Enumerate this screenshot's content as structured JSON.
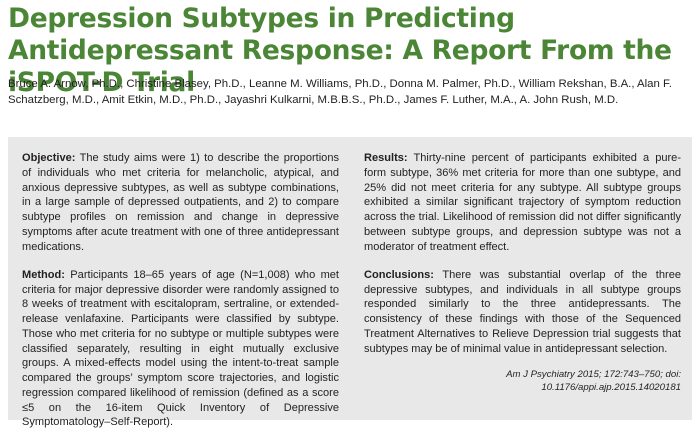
{
  "title": "Depression Subtypes in Predicting Antidepressant Response: A Report From the iSPOT-D Trial",
  "authors": "Bruce A. Arnow, Ph.D., Christine Blasey, Ph.D., Leanne M. Williams, Ph.D., Donna M. Palmer, Ph.D., William Rekshan, B.A., Alan F. Schatzberg, M.D., Amit Etkin, M.D., Ph.D., Jayashri Kulkarni, M.B.B.S., Ph.D., James F. Luther, M.A., A. John Rush, M.D.",
  "colors": {
    "title": "#4b8636",
    "abstract_bg": "#e7e8e7",
    "text": "#231f20"
  },
  "abstract": {
    "objective_label": "Objective:",
    "objective_text": " The study aims were 1) to describe the proportions of individuals who met criteria for melancholic, atypical, and anxious depressive subtypes, as well as subtype combinations, in a large sample of depressed outpatients, and 2) to compare subtype profiles on remission and change in depressive symptoms after acute treatment with one of three antidepressant medications.",
    "method_label": "Method:",
    "method_text": " Participants 18–65 years of age (N=1,008) who met criteria for major depressive disorder were randomly assigned to 8 weeks of treatment with escitalopram, sertraline, or extended-release venlafaxine. Participants were classified by subtype. Those who met criteria for no subtype or multiple subtypes were classified separately, resulting in eight mutually exclusive groups. A mixed-effects model using the intent-to-treat sample compared the groups’ symptom score trajectories, and logistic regression compared likelihood of remission (defined as a score ≤5 on the 16-item Quick Inventory of Depressive Symptomatology–Self-Report).",
    "results_label": "Results:",
    "results_text": " Thirty-nine percent of participants exhibited a pure-form subtype, 36% met criteria for more than one subtype, and 25% did not meet criteria for any subtype. All subtype groups exhibited a similar significant trajectory of symptom reduction across the trial. Likelihood of remission did not differ significantly between subtype groups, and depression subtype was not a moderator of treatment effect.",
    "conclusions_label": "Conclusions:",
    "conclusions_text": " There was substantial overlap of the three depressive subtypes, and individuals in all subtype groups responded similarly to the three antidepressants. The consistency of these findings with those of the Sequenced Treatment Alternatives to Relieve Depression trial suggests that subtypes may be of minimal value in antidepressant selection.",
    "citation": "Am J Psychiatry 2015; 172:743–750; doi: 10.1176/appi.ajp.2015.14020181"
  }
}
